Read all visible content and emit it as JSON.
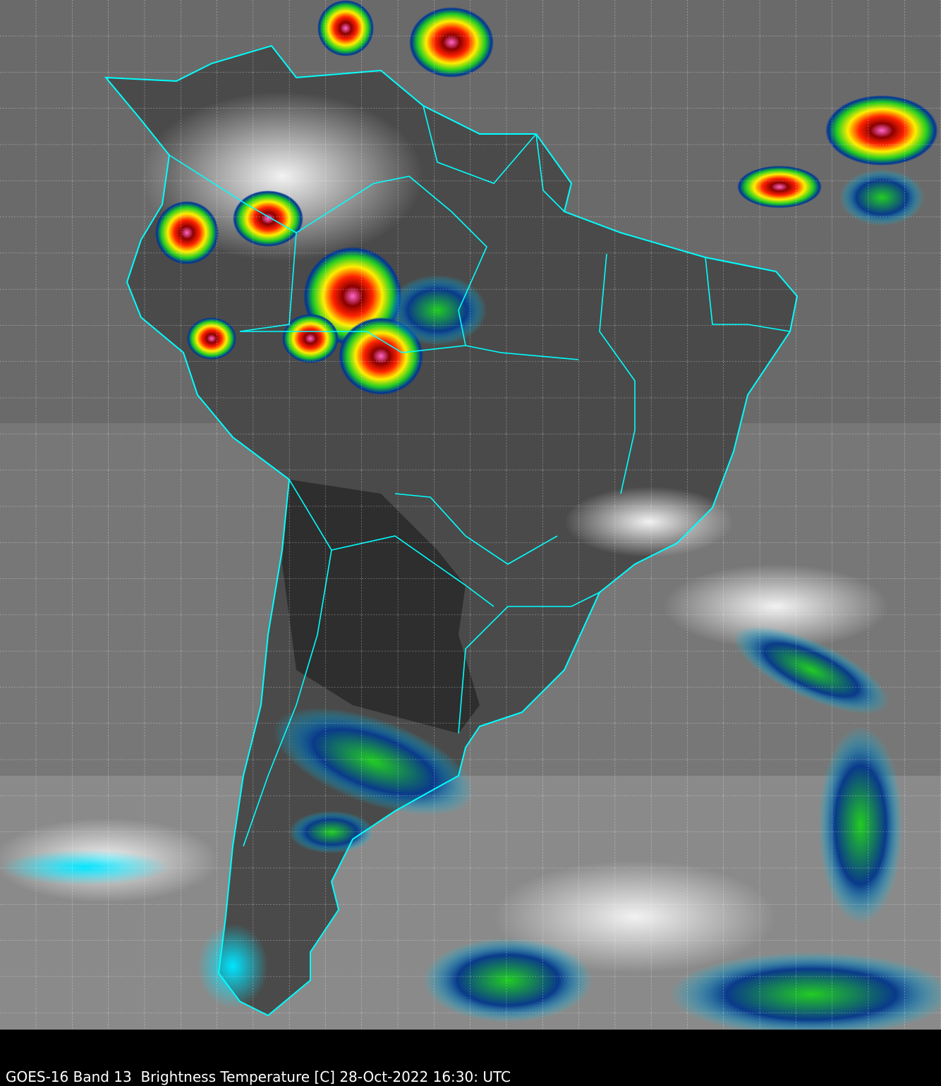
{
  "caption": "GOES-16 Band 13  Brightness Temperature [C] 28-Oct-2022 16:30: UTC",
  "colors": {
    "border_lines": "#00ffff",
    "grid_lines": "#ffffff",
    "background": "#000000",
    "cold_cloud_scale": [
      "#00e5ff",
      "#0033aa",
      "#00cc33",
      "#ffff00",
      "#ff0000",
      "#660000",
      "#ff66cc"
    ]
  }
}
